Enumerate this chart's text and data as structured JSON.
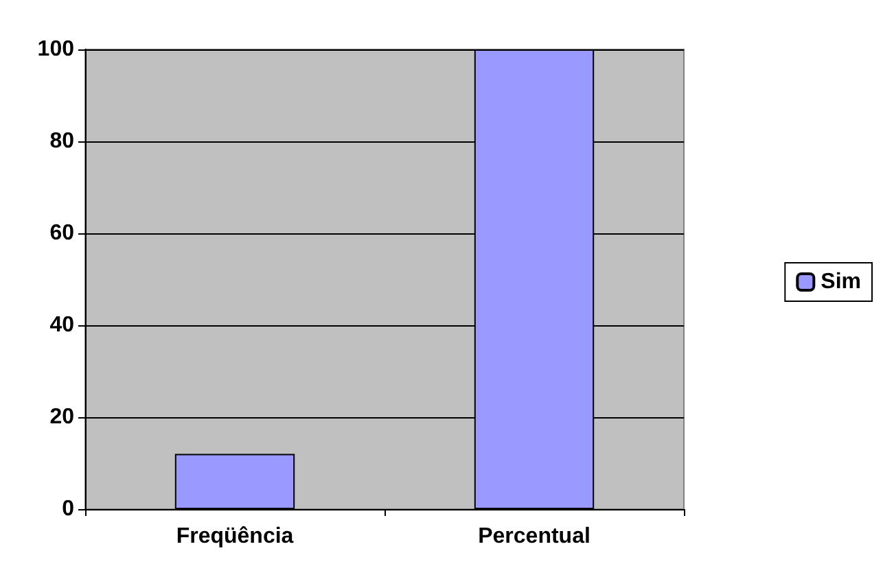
{
  "chart_data": {
    "type": "bar",
    "categories": [
      "Freqüência",
      "Percentual"
    ],
    "series": [
      {
        "name": "Sim",
        "color": "#9999ff",
        "values": [
          12,
          100
        ]
      }
    ],
    "ylim": [
      0,
      100
    ],
    "yticks": [
      0,
      20,
      40,
      60,
      80,
      100
    ],
    "grid": "y",
    "legend": "right"
  }
}
